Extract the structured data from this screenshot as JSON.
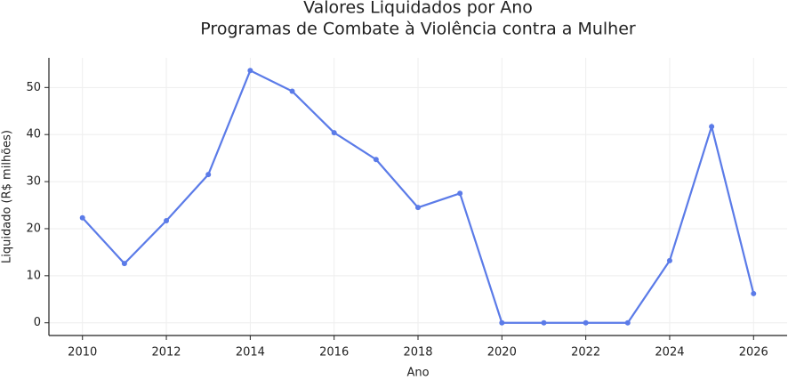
{
  "chart_data": {
    "type": "line",
    "title": "Valores Liquidados por Ano",
    "subtitle": "Programas de Combate à Violência contra a Mulher",
    "x_label": "Ano",
    "y_label": "Liquidado (R$ milhões)",
    "x": [
      2010,
      2011,
      2012,
      2013,
      2014,
      2015,
      2016,
      2017,
      2018,
      2019,
      2020,
      2021,
      2022,
      2023,
      2024,
      2025,
      2026
    ],
    "series": [
      {
        "color": "#5b7be8",
        "values": [
          22.3,
          12.6,
          21.7,
          31.5,
          53.6,
          49.2,
          40.4,
          34.7,
          24.5,
          27.5,
          0,
          0,
          0,
          0,
          13.2,
          41.7,
          6.2
        ]
      }
    ],
    "xlim": [
      2009.2,
      2026.8
    ],
    "ylim": [
      -2.7,
      56.3
    ],
    "xticks": [
      2010,
      2012,
      2014,
      2016,
      2018,
      2020,
      2022,
      2024,
      2026
    ],
    "yticks": [
      0,
      10,
      20,
      30,
      40,
      50
    ],
    "grid": true
  }
}
